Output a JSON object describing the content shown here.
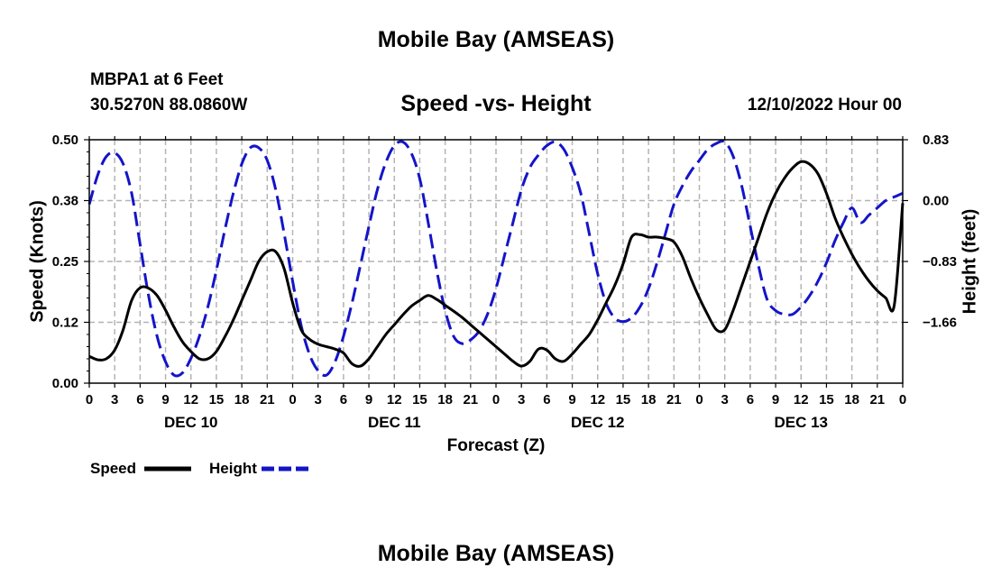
{
  "header": {
    "title": "Mobile Bay (AMSEAS)",
    "station": "MBPA1 at 6 Feet",
    "coords": "30.5270N  88.0860W",
    "datetime": "12/10/2022 Hour 00"
  },
  "footer": {
    "title": "Mobile Bay (AMSEAS)"
  },
  "colors": {
    "speed": "#000000",
    "height": "#1414c8",
    "grid": "#b4b4b4"
  },
  "chart_data": {
    "type": "line",
    "title": "Speed -vs- Height",
    "xlabel": "Forecast (Z)",
    "ylabel": "Speed (Knots)",
    "y2label": "Height (feet)",
    "xlim": [
      0,
      96
    ],
    "ylim": [
      0,
      0.5
    ],
    "y2lim": [
      -2.49,
      0.83
    ],
    "grid": true,
    "legend_position": "bottom-left",
    "yticks": [
      {
        "value": 0,
        "label": "0.00"
      },
      {
        "value": 0.125,
        "label": "0.12"
      },
      {
        "value": 0.25,
        "label": "0.25"
      },
      {
        "value": 0.375,
        "label": "0.38"
      },
      {
        "value": 0.5,
        "label": "0.50"
      }
    ],
    "y2ticks": [
      {
        "value": 0.83,
        "label": "0.83"
      },
      {
        "value": 0.0,
        "label": "0.00"
      },
      {
        "value": -0.83,
        "label": "−0.83"
      },
      {
        "value": -1.66,
        "label": "−1.66"
      }
    ],
    "xticks": [
      {
        "hour": 0,
        "label": "0"
      },
      {
        "hour": 3,
        "label": "3"
      },
      {
        "hour": 6,
        "label": "6"
      },
      {
        "hour": 9,
        "label": "9"
      },
      {
        "hour": 12,
        "label": "12"
      },
      {
        "hour": 15,
        "label": "15"
      },
      {
        "hour": 18,
        "label": "18"
      },
      {
        "hour": 21,
        "label": "21"
      },
      {
        "hour": 24,
        "label": "0"
      },
      {
        "hour": 27,
        "label": "3"
      },
      {
        "hour": 30,
        "label": "6"
      },
      {
        "hour": 33,
        "label": "9"
      },
      {
        "hour": 36,
        "label": "12"
      },
      {
        "hour": 39,
        "label": "15"
      },
      {
        "hour": 42,
        "label": "18"
      },
      {
        "hour": 45,
        "label": "21"
      },
      {
        "hour": 48,
        "label": "0"
      },
      {
        "hour": 51,
        "label": "3"
      },
      {
        "hour": 54,
        "label": "6"
      },
      {
        "hour": 57,
        "label": "9"
      },
      {
        "hour": 60,
        "label": "12"
      },
      {
        "hour": 63,
        "label": "15"
      },
      {
        "hour": 66,
        "label": "18"
      },
      {
        "hour": 69,
        "label": "21"
      },
      {
        "hour": 72,
        "label": "0"
      },
      {
        "hour": 75,
        "label": "3"
      },
      {
        "hour": 78,
        "label": "6"
      },
      {
        "hour": 81,
        "label": "9"
      },
      {
        "hour": 84,
        "label": "12"
      },
      {
        "hour": 87,
        "label": "15"
      },
      {
        "hour": 90,
        "label": "18"
      },
      {
        "hour": 93,
        "label": "21"
      },
      {
        "hour": 96,
        "label": "0"
      }
    ],
    "day_labels": [
      {
        "hour": 12,
        "label": "DEC 10"
      },
      {
        "hour": 36,
        "label": "DEC 11"
      },
      {
        "hour": 60,
        "label": "DEC 12"
      },
      {
        "hour": 84,
        "label": "DEC 13"
      }
    ],
    "series": [
      {
        "name": "Speed",
        "axis": "left",
        "style": "solid",
        "x": [
          0,
          1,
          2,
          3,
          4,
          5,
          6,
          7,
          8,
          9,
          10,
          11,
          12,
          13,
          14,
          15,
          16,
          17,
          18,
          19,
          20,
          21,
          22,
          23,
          24,
          25,
          26,
          27,
          28,
          29,
          30,
          31,
          32,
          33,
          34,
          35,
          36,
          37,
          38,
          39,
          40,
          41,
          42,
          43,
          44,
          45,
          46,
          47,
          48,
          49,
          50,
          51,
          52,
          53,
          54,
          55,
          56,
          57,
          58,
          59,
          60,
          61,
          62,
          63,
          64,
          65,
          66,
          67,
          68,
          69,
          70,
          71,
          72,
          73,
          74,
          75,
          76,
          77,
          78,
          79,
          80,
          81,
          82,
          83,
          84,
          85,
          86,
          87,
          88,
          89,
          90,
          91,
          92,
          93,
          94,
          95,
          96
        ],
        "values": [
          0.055,
          0.048,
          0.05,
          0.068,
          0.11,
          0.17,
          0.196,
          0.195,
          0.18,
          0.15,
          0.115,
          0.085,
          0.065,
          0.05,
          0.05,
          0.065,
          0.095,
          0.13,
          0.17,
          0.21,
          0.25,
          0.27,
          0.27,
          0.235,
          0.165,
          0.11,
          0.09,
          0.08,
          0.075,
          0.07,
          0.062,
          0.04,
          0.035,
          0.05,
          0.075,
          0.1,
          0.12,
          0.14,
          0.158,
          0.17,
          0.18,
          0.172,
          0.16,
          0.148,
          0.135,
          0.12,
          0.105,
          0.09,
          0.075,
          0.06,
          0.045,
          0.035,
          0.045,
          0.07,
          0.068,
          0.05,
          0.045,
          0.06,
          0.08,
          0.1,
          0.13,
          0.165,
          0.2,
          0.245,
          0.3,
          0.305,
          0.3,
          0.3,
          0.297,
          0.29,
          0.26,
          0.215,
          0.175,
          0.14,
          0.11,
          0.11,
          0.15,
          0.2,
          0.25,
          0.3,
          0.35,
          0.39,
          0.42,
          0.442,
          0.455,
          0.45,
          0.43,
          0.39,
          0.34,
          0.3,
          0.265,
          0.235,
          0.21,
          0.19,
          0.175,
          0.16,
          0.37
        ]
      },
      {
        "name": "Height",
        "axis": "right",
        "style": "dashed",
        "x": [
          0,
          1,
          2,
          3,
          4,
          5,
          6,
          7,
          8,
          9,
          10,
          11,
          12,
          13,
          14,
          15,
          16,
          17,
          18,
          19,
          20,
          21,
          22,
          23,
          24,
          25,
          26,
          27,
          28,
          29,
          30,
          31,
          32,
          33,
          34,
          35,
          36,
          37,
          38,
          39,
          40,
          41,
          42,
          43,
          44,
          45,
          46,
          47,
          48,
          49,
          50,
          51,
          52,
          53,
          54,
          55,
          56,
          57,
          58,
          59,
          60,
          61,
          62,
          63,
          64,
          65,
          66,
          67,
          68,
          69,
          70,
          71,
          72,
          73,
          74,
          75,
          76,
          77,
          78,
          79,
          80,
          81,
          82,
          83,
          84,
          85,
          86,
          87,
          88,
          89,
          90,
          91,
          92,
          93,
          94,
          95,
          96
        ],
        "values": [
          -0.05,
          0.35,
          0.6,
          0.65,
          0.5,
          0.1,
          -0.6,
          -1.3,
          -1.85,
          -2.2,
          -2.38,
          -2.35,
          -2.15,
          -1.85,
          -1.45,
          -0.95,
          -0.4,
          0.1,
          0.5,
          0.72,
          0.72,
          0.55,
          0.15,
          -0.45,
          -1.1,
          -1.7,
          -2.1,
          -2.32,
          -2.38,
          -2.2,
          -1.85,
          -1.4,
          -0.88,
          -0.35,
          0.15,
          0.52,
          0.75,
          0.8,
          0.65,
          0.3,
          -0.3,
          -0.95,
          -1.5,
          -1.85,
          -1.95,
          -1.9,
          -1.78,
          -1.55,
          -1.2,
          -0.75,
          -0.3,
          0.15,
          0.45,
          0.62,
          0.75,
          0.8,
          0.7,
          0.45,
          0.1,
          -0.45,
          -1.0,
          -1.4,
          -1.6,
          -1.65,
          -1.6,
          -1.45,
          -1.2,
          -0.85,
          -0.45,
          -0.05,
          0.2,
          0.4,
          0.55,
          0.7,
          0.78,
          0.8,
          0.6,
          0.2,
          -0.35,
          -0.9,
          -1.35,
          -1.5,
          -1.55,
          -1.55,
          -1.45,
          -1.3,
          -1.1,
          -0.85,
          -0.55,
          -0.3,
          -0.1,
          -0.3,
          -0.2,
          -0.1,
          0.0,
          0.05,
          0.1
        ]
      }
    ]
  },
  "legend": {
    "items": [
      {
        "label": "Speed",
        "series": "speed"
      },
      {
        "label": "Height",
        "series": "height"
      }
    ]
  }
}
